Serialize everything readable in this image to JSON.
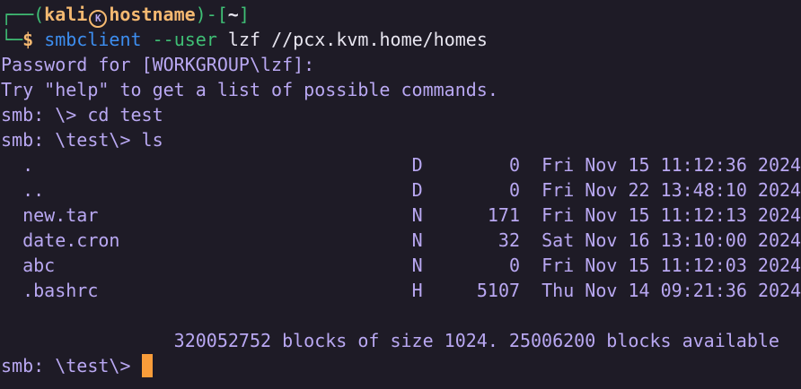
{
  "prompt": {
    "user": "kali",
    "host": "hostname",
    "cwd": "~",
    "command": "smbclient",
    "option": "--user",
    "args": "lzf //pcx.kvm.home/homes"
  },
  "output": [
    "Password for [WORKGROUP\\lzf]:",
    "Try \"help\" to get a list of possible commands.",
    "smb: \\> cd test",
    "smb: \\test\\> ls"
  ],
  "listing": [
    {
      "name": ".",
      "attr": "D",
      "size": "0",
      "date": "Fri Nov 15 11:12:36 2024"
    },
    {
      "name": "..",
      "attr": "D",
      "size": "0",
      "date": "Fri Nov 22 13:48:10 2024"
    },
    {
      "name": "new.tar",
      "attr": "N",
      "size": "171",
      "date": "Fri Nov 15 11:12:13 2024"
    },
    {
      "name": "date.cron",
      "attr": "N",
      "size": "32",
      "date": "Sat Nov 16 13:10:00 2024"
    },
    {
      "name": "abc",
      "attr": "N",
      "size": "0",
      "date": "Fri Nov 15 11:12:03 2024"
    },
    {
      "name": ".bashrc",
      "attr": "H",
      "size": "5107",
      "date": "Thu Nov 14 09:21:36 2024"
    }
  ],
  "summary": "320052752 blocks of size 1024. 25006200 blocks available",
  "final_prompt": "smb: \\test\\> ",
  "colors": {
    "background": "#1e1b26",
    "text": "#b9a8f2",
    "prompt_green": "#3fbf75",
    "prompt_user": "#f5b971",
    "command_blue": "#3d8ef0",
    "cursor": "#f99d3a"
  }
}
